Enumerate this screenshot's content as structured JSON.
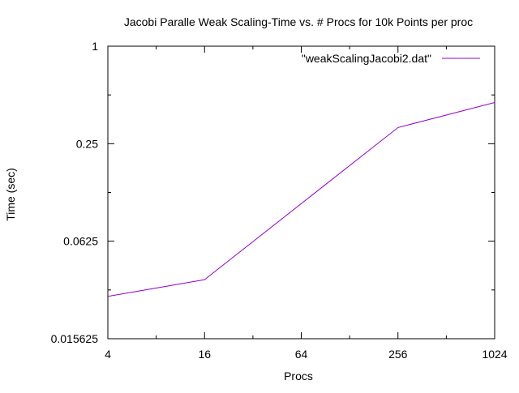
{
  "chart_data": {
    "type": "line",
    "title": "Jacobi Paralle Weak Scaling-Time vs. # Procs for 10k Points per proc",
    "xlabel": "Procs",
    "ylabel": "Time (sec)",
    "x_scale": "log2",
    "y_scale": "log2",
    "xlim": [
      4,
      1024
    ],
    "ylim": [
      0.015625,
      1
    ],
    "x_ticks": [
      {
        "value": 4,
        "label": "4"
      },
      {
        "value": 16,
        "label": "16"
      },
      {
        "value": 64,
        "label": "64"
      },
      {
        "value": 256,
        "label": "256"
      },
      {
        "value": 1024,
        "label": "1024"
      }
    ],
    "y_ticks": [
      {
        "value": 1,
        "label": "1"
      },
      {
        "value": 0.25,
        "label": "0.25"
      },
      {
        "value": 0.0625,
        "label": "0.0625"
      },
      {
        "value": 0.015625,
        "label": "0.015625"
      }
    ],
    "x_minor_ticks": [
      8,
      32,
      128,
      512
    ],
    "y_minor_ticks": [
      0.5,
      0.125,
      0.03125
    ],
    "grid": false,
    "legend_position": "top-right",
    "series": [
      {
        "name": "\"weakScalingJacobi2.dat\"",
        "color": "#9400d3",
        "x": [
          4,
          16,
          256,
          1024
        ],
        "y": [
          0.0285,
          0.0362,
          0.3145,
          0.449
        ]
      }
    ]
  }
}
